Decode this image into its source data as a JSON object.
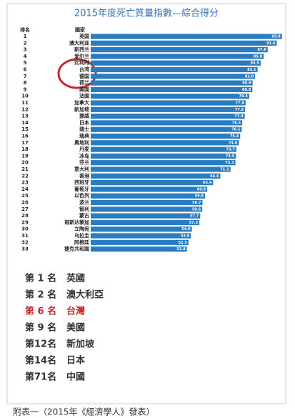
{
  "chart_data": {
    "type": "barh",
    "title": "2015年度死亡質量指數—綜合得分",
    "rank_header": "排名",
    "country_header": "國家",
    "ranks": [
      1,
      2,
      3,
      4,
      5,
      6,
      7,
      8,
      9,
      10,
      11,
      12,
      13,
      14,
      15,
      16,
      17,
      18,
      19,
      20,
      21,
      22,
      23,
      24,
      25,
      26,
      27,
      28,
      29,
      30,
      31,
      32,
      33
    ],
    "categories": [
      "英国",
      "澳大利亚",
      "新西兰",
      "爱尔兰",
      "比利时",
      "台湾",
      "德国",
      "荷兰",
      "美国",
      "法国",
      "加拿大",
      "新加坡",
      "挪威",
      "日本",
      "瑞士",
      "瑞典",
      "奥地利",
      "丹麦",
      "冰岛",
      "芬兰",
      "意大利",
      "香港",
      "西班牙",
      "葡萄牙",
      "以色列",
      "波兰",
      "智利",
      "蒙古",
      "哥斯达黎加",
      "立陶宛",
      "乌拉圭",
      "阿根廷",
      "捷克共和国"
    ],
    "values": [
      93.9,
      91.6,
      87.6,
      85.8,
      84.5,
      83.1,
      82.0,
      80.9,
      80.8,
      79.4,
      77.8,
      77.6,
      77.4,
      76.3,
      76.1,
      75.4,
      74.8,
      73.7,
      73.5,
      73.3,
      71.1,
      66.6,
      63.4,
      60.8,
      59.8,
      58.7,
      58.6,
      57.7,
      57.3,
      54.0,
      53.6,
      52.5,
      51.8
    ],
    "value_labels": [
      "93.9",
      "91.6",
      "87.6",
      "85.8",
      "84.5",
      "83.1",
      "82.0",
      "80.9",
      "80.8",
      "79.4",
      "77.8",
      "77.6",
      "77.4",
      "76.3",
      "76.1",
      "75.4",
      "74.8",
      "73.7",
      "73.5",
      "73.3",
      "71.1",
      "66.6",
      "63.4",
      "60.8",
      "59.8",
      "58.7",
      "58.6",
      "57.7",
      "57.3",
      "54.0",
      "53.6",
      "52.5",
      "51.8"
    ],
    "color": "#2a7cc0",
    "highlights": [
      {
        "rank": "第 1 名",
        "country": "英國"
      },
      {
        "rank": "第 2 名",
        "country": "澳大利亞"
      },
      {
        "rank": "第 6 名",
        "country": "台灣",
        "color": "#c8282d"
      },
      {
        "rank": "第 9 名",
        "country": "美國"
      },
      {
        "rank": "第12名",
        "country": "新加坡"
      },
      {
        "rank": "第14名",
        "country": "日本"
      },
      {
        "rank": "第71名",
        "country": "中國"
      }
    ],
    "caption": "附表一（2015年《經濟學人》發表）"
  }
}
